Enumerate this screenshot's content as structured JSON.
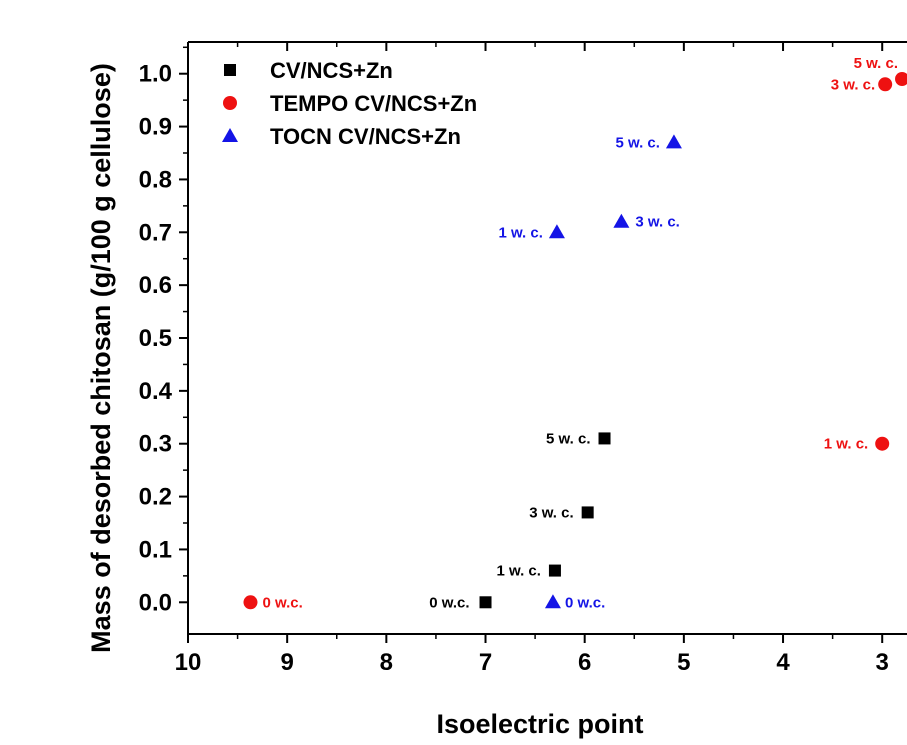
{
  "chart_data": {
    "type": "scatter",
    "xlabel": "Isoelectric point",
    "ylabel": "Mass of desorbed chitosan (g/100 g cellulose)",
    "xlim": [
      10,
      2.75
    ],
    "ylim": [
      -0.06,
      1.06
    ],
    "x_reversed": true,
    "x_ticks": [
      10,
      9,
      8,
      7,
      6,
      5,
      4,
      3
    ],
    "y_ticks": [
      0.0,
      0.1,
      0.2,
      0.3,
      0.4,
      0.5,
      0.6,
      0.7,
      0.8,
      0.9,
      1.0
    ],
    "x_tick_labels": [
      "10",
      "9",
      "8",
      "7",
      "6",
      "5",
      "4",
      "3"
    ],
    "y_tick_labels": [
      "0.0",
      "0.1",
      "0.2",
      "0.3",
      "0.4",
      "0.5",
      "0.6",
      "0.7",
      "0.8",
      "0.9",
      "1.0"
    ],
    "grid": false,
    "legend_position": "top-left",
    "series": [
      {
        "name": "CV/NCS+Zn",
        "marker": "square",
        "color": "#000000",
        "points": [
          {
            "x": 7.0,
            "y": 0.0,
            "label": "0 w.c."
          },
          {
            "x": 6.3,
            "y": 0.06,
            "label": "1 w. c."
          },
          {
            "x": 5.97,
            "y": 0.17,
            "label": "3 w. c."
          },
          {
            "x": 5.8,
            "y": 0.31,
            "label": "5 w. c."
          }
        ]
      },
      {
        "name": "TEMPO CV/NCS+Zn",
        "marker": "circle",
        "color": "#ee1111",
        "points": [
          {
            "x": 9.37,
            "y": 0.0,
            "label": "0 w.c."
          },
          {
            "x": 3.0,
            "y": 0.3,
            "label": "1 w. c."
          },
          {
            "x": 2.97,
            "y": 0.98,
            "label": "3 w. c."
          },
          {
            "x": 2.8,
            "y": 0.99,
            "label": "5 w. c."
          }
        ]
      },
      {
        "name": "TOCN CV/NCS+Zn",
        "marker": "triangle",
        "color": "#1414e6",
        "points": [
          {
            "x": 6.32,
            "y": 0.0,
            "label": "0 w.c."
          },
          {
            "x": 6.28,
            "y": 0.7,
            "label": "1 w. c."
          },
          {
            "x": 5.63,
            "y": 0.72,
            "label": "3 w. c."
          },
          {
            "x": 5.1,
            "y": 0.87,
            "label": "5 w. c."
          }
        ]
      }
    ]
  }
}
